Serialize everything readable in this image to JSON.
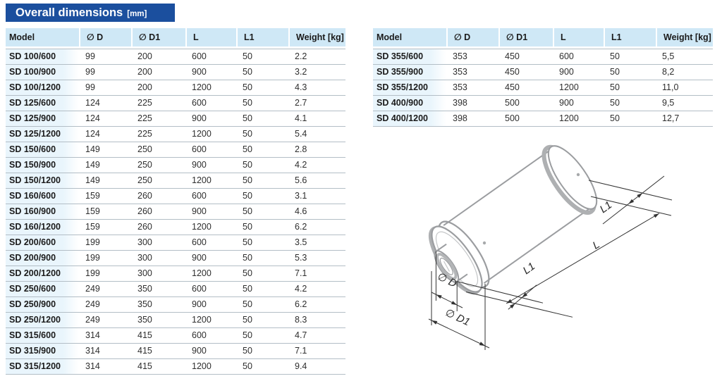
{
  "title": {
    "text": "Overall dimensions",
    "unit": "[mm]"
  },
  "tables": {
    "columns": [
      "Model",
      "∅ D",
      "∅ D1",
      "L",
      "L1",
      "Weight [kg]"
    ],
    "left": {
      "rows": [
        [
          "SD 100/600",
          "99",
          "200",
          "600",
          "50",
          "2.2"
        ],
        [
          "SD 100/900",
          "99",
          "200",
          "900",
          "50",
          "3.2"
        ],
        [
          "SD 100/1200",
          "99",
          "200",
          "1200",
          "50",
          "4.3"
        ],
        [
          "SD 125/600",
          "124",
          "225",
          "600",
          "50",
          "2.7"
        ],
        [
          "SD 125/900",
          "124",
          "225",
          "900",
          "50",
          "4.1"
        ],
        [
          "SD 125/1200",
          "124",
          "225",
          "1200",
          "50",
          "5.4"
        ],
        [
          "SD 150/600",
          "149",
          "250",
          "600",
          "50",
          "2.8"
        ],
        [
          "SD 150/900",
          "149",
          "250",
          "900",
          "50",
          "4.2"
        ],
        [
          "SD 150/1200",
          "149",
          "250",
          "1200",
          "50",
          "5.6"
        ],
        [
          "SD 160/600",
          "159",
          "260",
          "600",
          "50",
          "3.1"
        ],
        [
          "SD 160/900",
          "159",
          "260",
          "900",
          "50",
          "4.6"
        ],
        [
          "SD 160/1200",
          "159",
          "260",
          "1200",
          "50",
          "6.2"
        ],
        [
          "SD 200/600",
          "199",
          "300",
          "600",
          "50",
          "3.5"
        ],
        [
          "SD 200/900",
          "199",
          "300",
          "900",
          "50",
          "5.3"
        ],
        [
          "SD 200/1200",
          "199",
          "300",
          "1200",
          "50",
          "7.1"
        ],
        [
          "SD 250/600",
          "249",
          "350",
          "600",
          "50",
          "4.2"
        ],
        [
          "SD 250/900",
          "249",
          "350",
          "900",
          "50",
          "6.2"
        ],
        [
          "SD 250/1200",
          "249",
          "350",
          "1200",
          "50",
          "8.3"
        ],
        [
          "SD 315/600",
          "314",
          "415",
          "600",
          "50",
          "4.7"
        ],
        [
          "SD 315/900",
          "314",
          "415",
          "900",
          "50",
          "7.1"
        ],
        [
          "SD 315/1200",
          "314",
          "415",
          "1200",
          "50",
          "9.4"
        ]
      ]
    },
    "right": {
      "rows": [
        [
          "SD 355/600",
          "353",
          "450",
          "600",
          "50",
          "5,5"
        ],
        [
          "SD 355/900",
          "353",
          "450",
          "900",
          "50",
          "8,2"
        ],
        [
          "SD 355/1200",
          "353",
          "450",
          "1200",
          "50",
          "11,0"
        ],
        [
          "SD 400/900",
          "398",
          "500",
          "900",
          "50",
          "9,5"
        ],
        [
          "SD 400/1200",
          "398",
          "500",
          "1200",
          "50",
          "12,7"
        ]
      ]
    }
  },
  "drawing": {
    "labels": {
      "l1_far": "L1",
      "l": "L",
      "l1_near": "L1",
      "d": "∅ D",
      "d1": "∅ D1"
    }
  },
  "colors": {
    "banner_blue": "#1b4f9e",
    "header_bg": "#cfe8f6",
    "model_col_bg": "#e9f5fc",
    "row_rule": "#b3bec6",
    "drawing_gray": "#9b9da0"
  }
}
